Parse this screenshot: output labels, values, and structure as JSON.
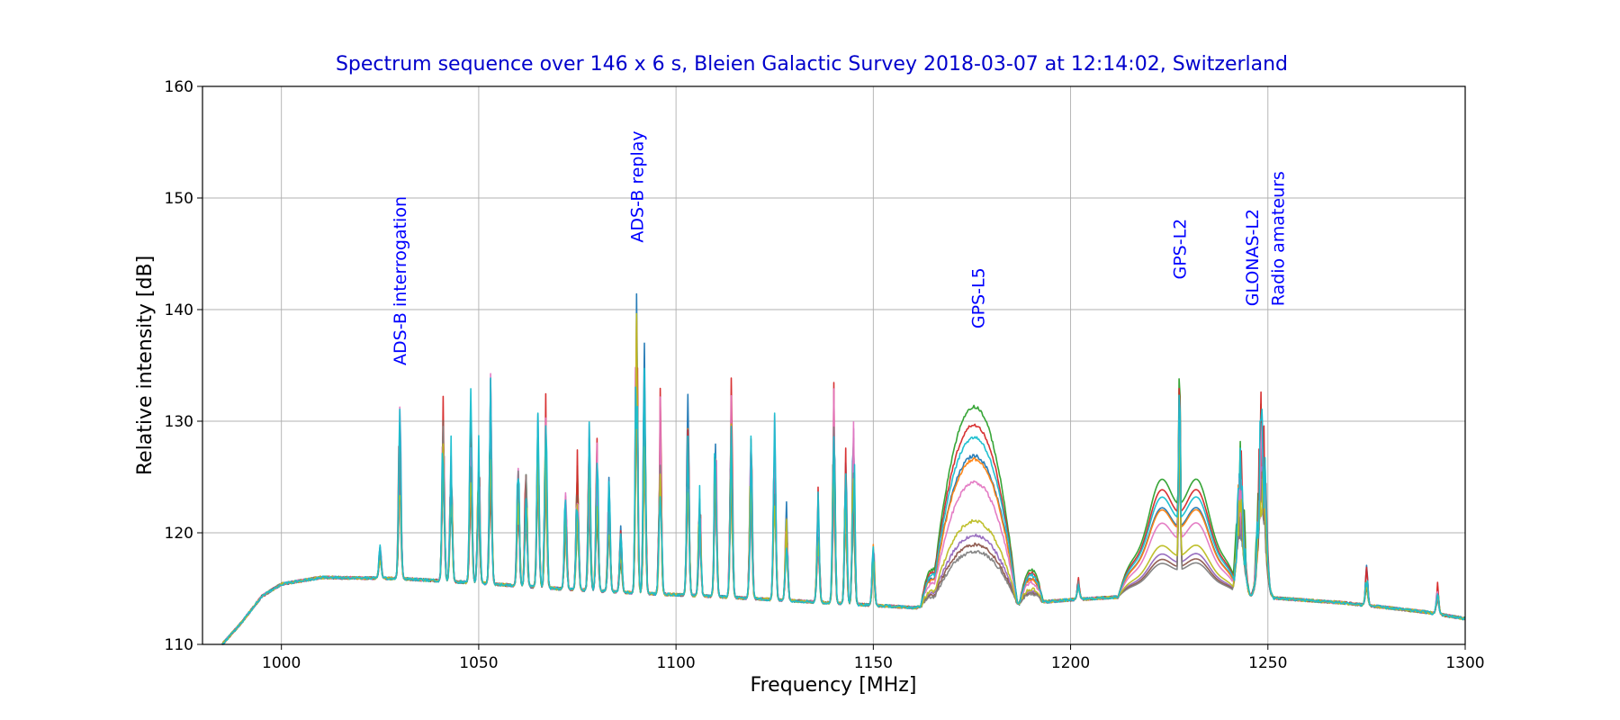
{
  "chart_data": {
    "type": "line",
    "title": "Spectrum sequence over 146 x 6 s, Bleien Galactic Survey 2018-03-07 at 12:14:02, Switzerland",
    "xlabel": "Frequency [MHz]",
    "ylabel": "Relative intensity [dB]",
    "xlim": [
      980,
      1300
    ],
    "ylim": [
      110,
      160
    ],
    "xticks": [
      1000,
      1050,
      1100,
      1150,
      1200,
      1250,
      1300
    ],
    "yticks": [
      110,
      120,
      130,
      140,
      150,
      160
    ],
    "grid": true,
    "title_color": "#0000cc",
    "annotation_color": "#0000ff",
    "series_colors": [
      "#1f77b4",
      "#ff7f0e",
      "#2ca02c",
      "#d62728",
      "#9467bd",
      "#8c564b",
      "#e377c2",
      "#7f7f7f",
      "#bcbd22",
      "#17becf"
    ],
    "series_count_shown": 10,
    "baseline": [
      [
        985,
        110.0
      ],
      [
        990,
        112.0
      ],
      [
        995,
        114.3
      ],
      [
        1000,
        115.4
      ],
      [
        1010,
        116.0
      ],
      [
        1030,
        115.9
      ],
      [
        1050,
        115.5
      ],
      [
        1070,
        115.0
      ],
      [
        1090,
        114.6
      ],
      [
        1110,
        114.3
      ],
      [
        1130,
        113.9
      ],
      [
        1150,
        113.5
      ],
      [
        1160,
        113.3
      ],
      [
        1175,
        113.4
      ],
      [
        1190,
        113.7
      ],
      [
        1200,
        114.0
      ],
      [
        1215,
        114.3
      ],
      [
        1230,
        114.5
      ],
      [
        1250,
        114.2
      ],
      [
        1270,
        113.7
      ],
      [
        1290,
        112.9
      ],
      [
        1300,
        112.3
      ]
    ],
    "spikes": [
      {
        "x": 1025,
        "peak": 119.3
      },
      {
        "x": 1030,
        "peak": 133.5
      },
      {
        "x": 1041,
        "peak": 133.5
      },
      {
        "x": 1043,
        "peak": 130.0
      },
      {
        "x": 1048,
        "peak": 133.0
      },
      {
        "x": 1050,
        "peak": 129.0
      },
      {
        "x": 1053,
        "peak": 134.8
      },
      {
        "x": 1060,
        "peak": 129.0
      },
      {
        "x": 1062,
        "peak": 127.5
      },
      {
        "x": 1065,
        "peak": 131.0
      },
      {
        "x": 1067,
        "peak": 133.0
      },
      {
        "x": 1072,
        "peak": 125.0
      },
      {
        "x": 1075,
        "peak": 128.0
      },
      {
        "x": 1078,
        "peak": 130.3
      },
      {
        "x": 1080,
        "peak": 129.0
      },
      {
        "x": 1083,
        "peak": 126.0
      },
      {
        "x": 1086,
        "peak": 121.0
      },
      {
        "x": 1090,
        "peak": 144.2
      },
      {
        "x": 1092,
        "peak": 137.5
      },
      {
        "x": 1096,
        "peak": 133.5
      },
      {
        "x": 1103,
        "peak": 133.2
      },
      {
        "x": 1106,
        "peak": 125.0
      },
      {
        "x": 1110,
        "peak": 132.5
      },
      {
        "x": 1114,
        "peak": 134.0
      },
      {
        "x": 1119,
        "peak": 131.0
      },
      {
        "x": 1125,
        "peak": 131.5
      },
      {
        "x": 1128,
        "peak": 123.0
      },
      {
        "x": 1136,
        "peak": 124.5
      },
      {
        "x": 1140,
        "peak": 134.8
      },
      {
        "x": 1143,
        "peak": 128.0
      },
      {
        "x": 1145,
        "peak": 132.3
      },
      {
        "x": 1150,
        "peak": 120.3
      },
      {
        "x": 1202,
        "peak": 116.0
      },
      {
        "x": 1275,
        "peak": 117.2
      },
      {
        "x": 1293,
        "peak": 115.6
      }
    ],
    "humps": [
      {
        "center": 1175.5,
        "peak": 131.6,
        "width": 11
      },
      {
        "center": 1165.0,
        "peak": 116.8,
        "width": 3
      },
      {
        "center": 1190.0,
        "peak": 116.7,
        "width": 3
      }
    ],
    "gps_l2_band": {
      "start": 1212,
      "end": 1243,
      "top": 126.3,
      "peak_center": 1227.6,
      "peak": 135.3
    },
    "glonas_radio_peaks": [
      {
        "x": 1243,
        "peak": 129.2
      },
      {
        "x": 1248.5,
        "peak": 135.3
      }
    ],
    "annotations": [
      {
        "text": "ADS-B interrogation",
        "x": 1030,
        "y": 135
      },
      {
        "text": "ADS-B replay",
        "x": 1090,
        "y": 146
      },
      {
        "text": "GPS-L5",
        "x": 1176.45,
        "y": 138.3
      },
      {
        "text": "GPS-L2",
        "x": 1227.6,
        "y": 142.7
      },
      {
        "text": "GLONAS-L2",
        "x": 1246,
        "y": 140.3
      },
      {
        "text": "Radio amateurs",
        "x": 1252.5,
        "y": 140.3
      }
    ]
  }
}
